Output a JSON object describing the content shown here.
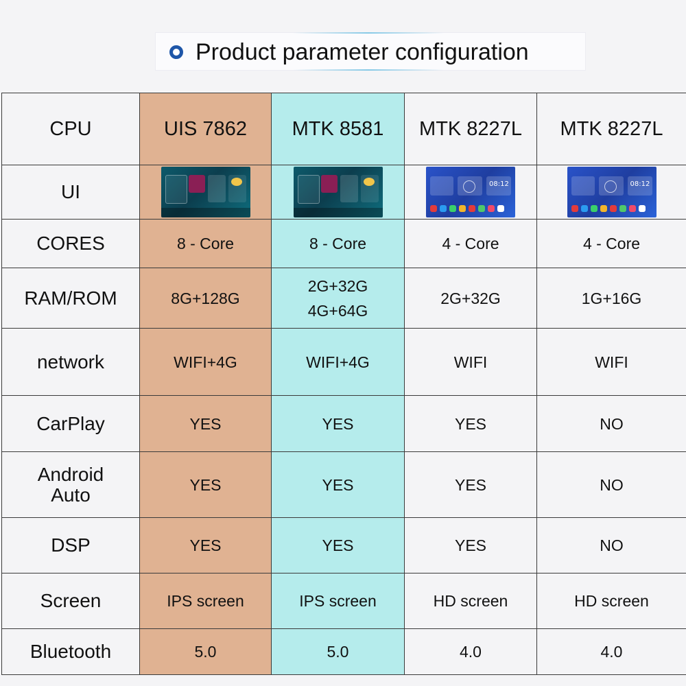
{
  "title": "Product parameter configuration",
  "colors": {
    "col_uis7862": "#e0b292",
    "col_mtk8581": "#b5ecec",
    "title_dot": "#1e56a8"
  },
  "table": {
    "header": {
      "label": "CPU",
      "cols": [
        "UIS 7862",
        "MTK 8581",
        "MTK 8227L",
        "MTK 8227L"
      ]
    },
    "ui_row": {
      "label": "UI",
      "screenshots": [
        "dark-teal-launcher",
        "dark-teal-launcher",
        "blue-launcher-with-clock",
        "blue-launcher-with-clock"
      ],
      "clock_text": "08:12",
      "radio_text": "91.8"
    },
    "rows": [
      {
        "label": "CORES",
        "values": [
          "8 - Core",
          "8 - Core",
          "4 - Core",
          "4 - Core"
        ]
      },
      {
        "label": "RAM/ROM",
        "values": [
          "8G+128G",
          "2G+32G\n4G+64G",
          "2G+32G",
          "1G+16G"
        ]
      },
      {
        "label": "network",
        "values": [
          "WIFI+4G",
          "WIFI+4G",
          "WIFI",
          "WIFI"
        ]
      },
      {
        "label": "CarPlay",
        "values": [
          "YES",
          "YES",
          "YES",
          "NO"
        ]
      },
      {
        "label": "Android\nAuto",
        "values": [
          "YES",
          "YES",
          "YES",
          "NO"
        ]
      },
      {
        "label": "DSP",
        "values": [
          "YES",
          "YES",
          "YES",
          "NO"
        ]
      },
      {
        "label": "Screen",
        "values": [
          "IPS screen",
          "IPS screen",
          "HD screen",
          "HD screen"
        ]
      },
      {
        "label": "Bluetooth",
        "values": [
          "5.0",
          "5.0",
          "4.0",
          "4.0"
        ]
      }
    ]
  }
}
